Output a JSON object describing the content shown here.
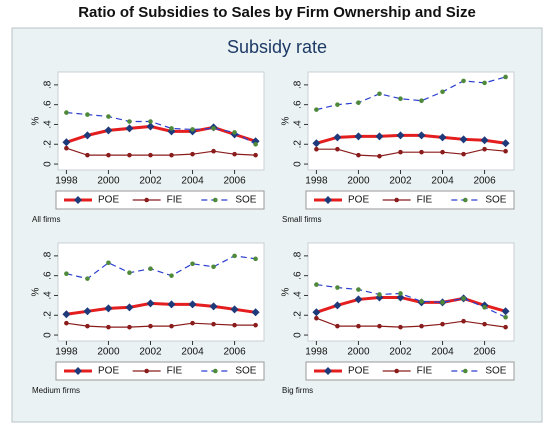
{
  "title": "Ratio of Subsidies to Sales by Firm Ownership and Size",
  "subtitle": "Subsidy rate",
  "chart_data": [
    {
      "type": "line",
      "caption": "All firms",
      "ylabel": "%",
      "legend": "bottom",
      "x": [
        1998,
        1999,
        2000,
        2001,
        2002,
        2003,
        2004,
        2005,
        2006,
        2007
      ],
      "xlim": [
        1997.6,
        2007.4
      ],
      "xticks": [
        1998,
        2000,
        2002,
        2004,
        2006
      ],
      "ylim": [
        -0.06,
        0.93
      ],
      "yticks": [
        0,
        {
          "value": 0.2,
          "label": ".2"
        },
        {
          "value": 0.4,
          "label": ".4"
        },
        {
          "value": 0.6,
          "label": ".6"
        },
        {
          "value": 0.8,
          "label": ".8"
        }
      ],
      "series": [
        {
          "name": "POE",
          "color": "#e41e1e",
          "marker_color": "#1f3a7a",
          "marker": "diamond",
          "line_style": "solid",
          "width": 3,
          "values": [
            0.22,
            0.29,
            0.34,
            0.36,
            0.38,
            0.33,
            0.33,
            0.37,
            0.3,
            0.23
          ]
        },
        {
          "name": "FIE",
          "color": "#8b1c1c",
          "marker_color": "#8b1c1c",
          "marker": "circle",
          "line_style": "solid",
          "width": 1.2,
          "values": [
            0.16,
            0.09,
            0.09,
            0.09,
            0.09,
            0.09,
            0.1,
            0.13,
            0.1,
            0.09
          ]
        },
        {
          "name": "SOE",
          "color": "#2a3fd0",
          "marker_color": "#4f8a3a",
          "marker": "circle",
          "line_style": "dashed",
          "width": 1.2,
          "values": [
            0.52,
            0.5,
            0.48,
            0.43,
            0.43,
            0.36,
            0.35,
            0.36,
            0.32,
            0.2
          ]
        }
      ]
    },
    {
      "type": "line",
      "caption": "Small firms",
      "ylabel": "%",
      "legend": "bottom",
      "x": [
        1998,
        1999,
        2000,
        2001,
        2002,
        2003,
        2004,
        2005,
        2006,
        2007
      ],
      "xlim": [
        1997.6,
        2007.4
      ],
      "xticks": [
        1998,
        2000,
        2002,
        2004,
        2006
      ],
      "ylim": [
        -0.06,
        0.93
      ],
      "yticks": [
        0,
        {
          "value": 0.2,
          "label": ".2"
        },
        {
          "value": 0.4,
          "label": ".4"
        },
        {
          "value": 0.6,
          "label": ".6"
        },
        {
          "value": 0.8,
          "label": ".8"
        }
      ],
      "series": [
        {
          "name": "POE",
          "color": "#e41e1e",
          "marker_color": "#1f3a7a",
          "marker": "diamond",
          "line_style": "solid",
          "width": 3,
          "values": [
            0.21,
            0.27,
            0.28,
            0.28,
            0.29,
            0.29,
            0.27,
            0.25,
            0.24,
            0.21
          ]
        },
        {
          "name": "FIE",
          "color": "#8b1c1c",
          "marker_color": "#8b1c1c",
          "marker": "circle",
          "line_style": "solid",
          "width": 1.2,
          "values": [
            0.15,
            0.15,
            0.09,
            0.08,
            0.12,
            0.12,
            0.12,
            0.1,
            0.15,
            0.13
          ]
        },
        {
          "name": "SOE",
          "color": "#2a3fd0",
          "marker_color": "#4f8a3a",
          "marker": "circle",
          "line_style": "dashed",
          "width": 1.2,
          "values": [
            0.55,
            0.6,
            0.62,
            0.71,
            0.66,
            0.64,
            0.73,
            0.84,
            0.82,
            0.88
          ]
        }
      ]
    },
    {
      "type": "line",
      "caption": "Medium firms",
      "ylabel": "%",
      "legend": "bottom",
      "x": [
        1998,
        1999,
        2000,
        2001,
        2002,
        2003,
        2004,
        2005,
        2006,
        2007
      ],
      "xlim": [
        1997.6,
        2007.4
      ],
      "xticks": [
        1998,
        2000,
        2002,
        2004,
        2006
      ],
      "ylim": [
        -0.06,
        0.93
      ],
      "yticks": [
        0,
        {
          "value": 0.2,
          "label": ".2"
        },
        {
          "value": 0.4,
          "label": ".4"
        },
        {
          "value": 0.6,
          "label": ".6"
        },
        {
          "value": 0.8,
          "label": ".8"
        }
      ],
      "series": [
        {
          "name": "POE",
          "color": "#e41e1e",
          "marker_color": "#1f3a7a",
          "marker": "diamond",
          "line_style": "solid",
          "width": 3,
          "values": [
            0.21,
            0.24,
            0.27,
            0.28,
            0.32,
            0.31,
            0.31,
            0.29,
            0.26,
            0.23
          ]
        },
        {
          "name": "FIE",
          "color": "#8b1c1c",
          "marker_color": "#8b1c1c",
          "marker": "circle",
          "line_style": "solid",
          "width": 1.2,
          "values": [
            0.12,
            0.09,
            0.08,
            0.08,
            0.09,
            0.09,
            0.12,
            0.11,
            0.1,
            0.1
          ]
        },
        {
          "name": "SOE",
          "color": "#2a3fd0",
          "marker_color": "#4f8a3a",
          "marker": "circle",
          "line_style": "dashed",
          "width": 1.2,
          "values": [
            0.62,
            0.57,
            0.73,
            0.63,
            0.67,
            0.6,
            0.72,
            0.69,
            0.8,
            0.77
          ]
        }
      ]
    },
    {
      "type": "line",
      "caption": "Big firms",
      "ylabel": "%",
      "legend": "bottom",
      "x": [
        1998,
        1999,
        2000,
        2001,
        2002,
        2003,
        2004,
        2005,
        2006,
        2007
      ],
      "xlim": [
        1997.6,
        2007.4
      ],
      "xticks": [
        1998,
        2000,
        2002,
        2004,
        2006
      ],
      "ylim": [
        -0.06,
        0.93
      ],
      "yticks": [
        0,
        {
          "value": 0.2,
          "label": ".2"
        },
        {
          "value": 0.4,
          "label": ".4"
        },
        {
          "value": 0.6,
          "label": ".6"
        },
        {
          "value": 0.8,
          "label": ".8"
        }
      ],
      "series": [
        {
          "name": "POE",
          "color": "#e41e1e",
          "marker_color": "#1f3a7a",
          "marker": "diamond",
          "line_style": "solid",
          "width": 3,
          "values": [
            0.23,
            0.3,
            0.36,
            0.38,
            0.38,
            0.33,
            0.33,
            0.37,
            0.3,
            0.24
          ]
        },
        {
          "name": "FIE",
          "color": "#8b1c1c",
          "marker_color": "#8b1c1c",
          "marker": "circle",
          "line_style": "solid",
          "width": 1.2,
          "values": [
            0.17,
            0.09,
            0.09,
            0.09,
            0.08,
            0.09,
            0.11,
            0.14,
            0.11,
            0.08
          ]
        },
        {
          "name": "SOE",
          "color": "#2a3fd0",
          "marker_color": "#4f8a3a",
          "marker": "circle",
          "line_style": "dashed",
          "width": 1.2,
          "values": [
            0.51,
            0.48,
            0.46,
            0.41,
            0.42,
            0.34,
            0.33,
            0.37,
            0.28,
            0.18
          ]
        }
      ]
    }
  ]
}
